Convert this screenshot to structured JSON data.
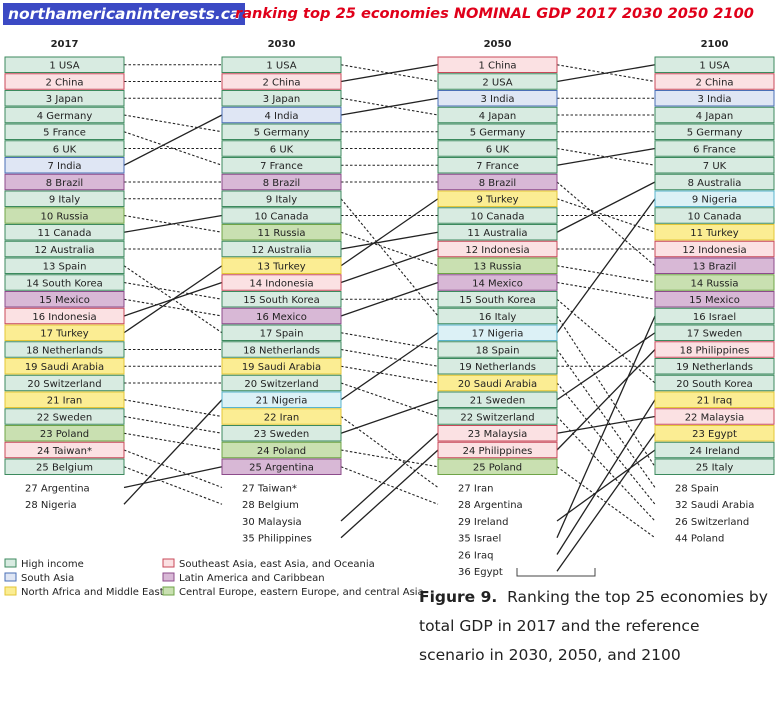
{
  "header": {
    "site": "northamericaninterests.ca",
    "title": "ranking top 25 economies NOMINAL GDP 2017 2030  2050 2100"
  },
  "caption": {
    "figure_label": "Figure 9.",
    "text": "Ranking the top 25 economies by total GDP in 2017 and the reference scenario in 2030, 2050, and 2100"
  },
  "region_colors": {
    "H": {
      "fill": "#d8ebe1",
      "stroke": "#3c8a5e"
    },
    "S": {
      "fill": "#dfe6f4",
      "stroke": "#4a6fb6"
    },
    "N": {
      "fill": "#fbed93",
      "stroke": "#e3c637"
    },
    "A": {
      "fill": "#fbe1e3",
      "stroke": "#c8495a"
    },
    "L": {
      "fill": "#d8b8d6",
      "stroke": "#8c4b8b"
    },
    "C": {
      "fill": "#c9e0b1",
      "stroke": "#6fa447"
    }
  },
  "chart_data": {
    "type": "bump",
    "title": "",
    "columns": [
      {
        "year": "2017",
        "top": [
          {
            "rank": "1",
            "name": "USA",
            "region": "H"
          },
          {
            "rank": "2",
            "name": "China",
            "region": "A"
          },
          {
            "rank": "3",
            "name": "Japan",
            "region": "H"
          },
          {
            "rank": "4",
            "name": "Germany",
            "region": "H"
          },
          {
            "rank": "5",
            "name": "France",
            "region": "H"
          },
          {
            "rank": "6",
            "name": "UK",
            "region": "H"
          },
          {
            "rank": "7",
            "name": "India",
            "region": "S"
          },
          {
            "rank": "8",
            "name": "Brazil",
            "region": "L"
          },
          {
            "rank": "9",
            "name": "Italy",
            "region": "H"
          },
          {
            "rank": "10",
            "name": "Russia",
            "region": "C"
          },
          {
            "rank": "11",
            "name": "Canada",
            "region": "H"
          },
          {
            "rank": "12",
            "name": "Australia",
            "region": "H"
          },
          {
            "rank": "13",
            "name": "Spain",
            "region": "H"
          },
          {
            "rank": "14",
            "name": "South Korea",
            "region": "H"
          },
          {
            "rank": "15",
            "name": "Mexico",
            "region": "L"
          },
          {
            "rank": "16",
            "name": "Indonesia",
            "region": "A"
          },
          {
            "rank": "17",
            "name": "Turkey",
            "region": "N"
          },
          {
            "rank": "18",
            "name": "Netherlands",
            "region": "H"
          },
          {
            "rank": "19",
            "name": "Saudi Arabia",
            "region": "N"
          },
          {
            "rank": "20",
            "name": "Switzerland",
            "region": "H"
          },
          {
            "rank": "21",
            "name": "Iran",
            "region": "N"
          },
          {
            "rank": "22",
            "name": "Sweden",
            "region": "H"
          },
          {
            "rank": "23",
            "name": "Poland",
            "region": "C"
          },
          {
            "rank": "24",
            "name": "Taiwan*",
            "region": "A"
          },
          {
            "rank": "25",
            "name": "Belgium",
            "region": "H"
          }
        ],
        "extra": [
          {
            "rank": "27",
            "name": "Argentina"
          },
          {
            "rank": "28",
            "name": "Nigeria"
          }
        ]
      },
      {
        "year": "2030",
        "top": [
          {
            "rank": "1",
            "name": "USA",
            "region": "H"
          },
          {
            "rank": "2",
            "name": "China",
            "region": "A"
          },
          {
            "rank": "3",
            "name": "Japan",
            "region": "H"
          },
          {
            "rank": "4",
            "name": "India",
            "region": "S"
          },
          {
            "rank": "5",
            "name": "Germany",
            "region": "H"
          },
          {
            "rank": "6",
            "name": "UK",
            "region": "H"
          },
          {
            "rank": "7",
            "name": "France",
            "region": "H"
          },
          {
            "rank": "8",
            "name": "Brazil",
            "region": "L"
          },
          {
            "rank": "9",
            "name": "Italy",
            "region": "H"
          },
          {
            "rank": "10",
            "name": "Canada",
            "region": "H"
          },
          {
            "rank": "11",
            "name": "Russia",
            "region": "C"
          },
          {
            "rank": "12",
            "name": "Australia",
            "region": "H"
          },
          {
            "rank": "13",
            "name": "Turkey",
            "region": "N"
          },
          {
            "rank": "14",
            "name": "Indonesia",
            "region": "A"
          },
          {
            "rank": "15",
            "name": "South Korea",
            "region": "H"
          },
          {
            "rank": "16",
            "name": "Mexico",
            "region": "L"
          },
          {
            "rank": "17",
            "name": "Spain",
            "region": "H"
          },
          {
            "rank": "18",
            "name": "Netherlands",
            "region": "H"
          },
          {
            "rank": "19",
            "name": "Saudi Arabia",
            "region": "N"
          },
          {
            "rank": "20",
            "name": "Switzerland",
            "region": "H"
          },
          {
            "rank": "21",
            "name": "Nigeria",
            "region": "SSA"
          },
          {
            "rank": "22",
            "name": "Iran",
            "region": "N"
          },
          {
            "rank": "23",
            "name": "Sweden",
            "region": "H"
          },
          {
            "rank": "24",
            "name": "Poland",
            "region": "C"
          },
          {
            "rank": "25",
            "name": "Argentina",
            "region": "L"
          }
        ],
        "extra": [
          {
            "rank": "27",
            "name": "Taiwan*"
          },
          {
            "rank": "28",
            "name": "Belgium"
          },
          {
            "rank": "30",
            "name": "Malaysia"
          },
          {
            "rank": "35",
            "name": "Philippines"
          }
        ]
      },
      {
        "year": "2050",
        "top": [
          {
            "rank": "1",
            "name": "China",
            "region": "A"
          },
          {
            "rank": "2",
            "name": "USA",
            "region": "H"
          },
          {
            "rank": "3",
            "name": "India",
            "region": "S"
          },
          {
            "rank": "4",
            "name": "Japan",
            "region": "H"
          },
          {
            "rank": "5",
            "name": "Germany",
            "region": "H"
          },
          {
            "rank": "6",
            "name": "UK",
            "region": "H"
          },
          {
            "rank": "7",
            "name": "France",
            "region": "H"
          },
          {
            "rank": "8",
            "name": "Brazil",
            "region": "L"
          },
          {
            "rank": "9",
            "name": "Turkey",
            "region": "N"
          },
          {
            "rank": "10",
            "name": "Canada",
            "region": "H"
          },
          {
            "rank": "11",
            "name": "Australia",
            "region": "H"
          },
          {
            "rank": "12",
            "name": "Indonesia",
            "region": "A"
          },
          {
            "rank": "13",
            "name": "Russia",
            "region": "C"
          },
          {
            "rank": "14",
            "name": "Mexico",
            "region": "L"
          },
          {
            "rank": "15",
            "name": "South Korea",
            "region": "H"
          },
          {
            "rank": "16",
            "name": "Italy",
            "region": "H"
          },
          {
            "rank": "17",
            "name": "Nigeria",
            "region": "SSA"
          },
          {
            "rank": "18",
            "name": "Spain",
            "region": "H"
          },
          {
            "rank": "19",
            "name": "Netherlands",
            "region": "H"
          },
          {
            "rank": "20",
            "name": "Saudi Arabia",
            "region": "N"
          },
          {
            "rank": "21",
            "name": "Sweden",
            "region": "H"
          },
          {
            "rank": "22",
            "name": "Switzerland",
            "region": "H"
          },
          {
            "rank": "23",
            "name": "Malaysia",
            "region": "A"
          },
          {
            "rank": "24",
            "name": "Philippines",
            "region": "A"
          },
          {
            "rank": "25",
            "name": "Poland",
            "region": "C"
          }
        ],
        "extra": [
          {
            "rank": "27",
            "name": "Iran"
          },
          {
            "rank": "28",
            "name": "Argentina"
          },
          {
            "rank": "29",
            "name": "Ireland"
          },
          {
            "rank": "35",
            "name": "Israel"
          },
          {
            "rank": "26",
            "name": "Iraq"
          },
          {
            "rank": "36",
            "name": "Egypt"
          }
        ]
      },
      {
        "year": "2100",
        "top": [
          {
            "rank": "1",
            "name": "USA",
            "region": "H"
          },
          {
            "rank": "2",
            "name": "China",
            "region": "A"
          },
          {
            "rank": "3",
            "name": "India",
            "region": "S"
          },
          {
            "rank": "4",
            "name": "Japan",
            "region": "H"
          },
          {
            "rank": "5",
            "name": "Germany",
            "region": "H"
          },
          {
            "rank": "6",
            "name": "France",
            "region": "H"
          },
          {
            "rank": "7",
            "name": "UK",
            "region": "H"
          },
          {
            "rank": "8",
            "name": "Australia",
            "region": "H"
          },
          {
            "rank": "9",
            "name": "Nigeria",
            "region": "SSA"
          },
          {
            "rank": "10",
            "name": "Canada",
            "region": "H"
          },
          {
            "rank": "11",
            "name": "Turkey",
            "region": "N"
          },
          {
            "rank": "12",
            "name": "Indonesia",
            "region": "A"
          },
          {
            "rank": "13",
            "name": "Brazil",
            "region": "L"
          },
          {
            "rank": "14",
            "name": "Russia",
            "region": "C"
          },
          {
            "rank": "15",
            "name": "Mexico",
            "region": "L"
          },
          {
            "rank": "16",
            "name": "Israel",
            "region": "H"
          },
          {
            "rank": "17",
            "name": "Sweden",
            "region": "H"
          },
          {
            "rank": "18",
            "name": "Philippines",
            "region": "A"
          },
          {
            "rank": "19",
            "name": "Netherlands",
            "region": "H"
          },
          {
            "rank": "20",
            "name": "South Korea",
            "region": "H"
          },
          {
            "rank": "21",
            "name": "Iraq",
            "region": "N"
          },
          {
            "rank": "22",
            "name": "Malaysia",
            "region": "A"
          },
          {
            "rank": "23",
            "name": "Egypt",
            "region": "N"
          },
          {
            "rank": "24",
            "name": "Ireland",
            "region": "H"
          },
          {
            "rank": "25",
            "name": "Italy",
            "region": "H"
          }
        ],
        "extra": [
          {
            "rank": "28",
            "name": "Spain"
          },
          {
            "rank": "32",
            "name": "Saudi Arabia"
          },
          {
            "rank": "26",
            "name": "Switzerland"
          },
          {
            "rank": "44",
            "name": "Poland"
          }
        ]
      }
    ],
    "legend": [
      {
        "key": "H",
        "label": "High income"
      },
      {
        "key": "S",
        "label": "South Asia"
      },
      {
        "key": "N",
        "label": "North Africa and Middle East"
      },
      {
        "key": "A",
        "label": "Southeast Asia, east Asia, and Oceania"
      },
      {
        "key": "L",
        "label": "Latin America and Caribbean"
      },
      {
        "key": "C",
        "label": "Central Europe, eastern Europe, and central Asia"
      }
    ]
  }
}
